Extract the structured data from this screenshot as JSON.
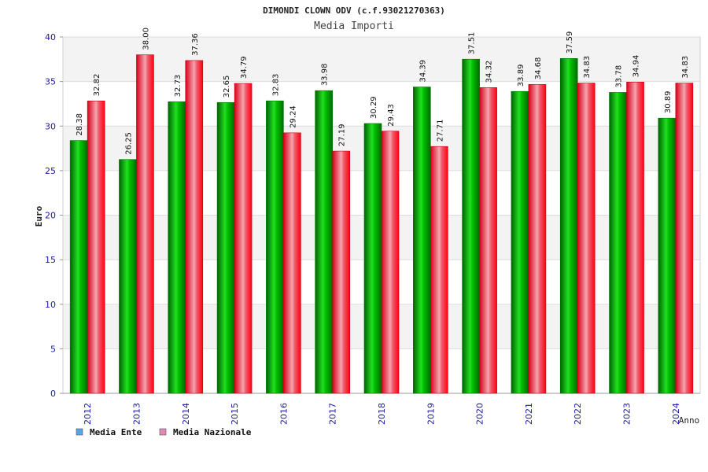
{
  "chart_data": {
    "type": "bar",
    "title": "DIMONDI CLOWN ODV (c.f.93021270363)",
    "subtitle": "Media Importi",
    "xlabel": "Anno",
    "ylabel": "Euro",
    "ylim": [
      0,
      40
    ],
    "yticks": [
      0,
      5,
      10,
      15,
      20,
      25,
      30,
      35,
      40
    ],
    "grid": true,
    "legend_position": "bottom-left",
    "categories": [
      "2012",
      "2013",
      "2014",
      "2015",
      "2016",
      "2017",
      "2018",
      "2019",
      "2020",
      "2021",
      "2022",
      "2023",
      "2024"
    ],
    "series": [
      {
        "name": "Media Ente",
        "color": "#00c000",
        "legend_color": "#5ba3e6",
        "values": [
          28.38,
          26.25,
          32.73,
          32.65,
          32.83,
          33.98,
          30.29,
          34.39,
          37.51,
          33.89,
          37.59,
          33.78,
          30.89
        ],
        "labels": [
          "28.38",
          "26.25",
          "32.73",
          "32.65",
          "32.83",
          "33.98",
          "30.29",
          "34.39",
          "37.51",
          "33.89",
          "37.59",
          "33.78",
          "30.89"
        ]
      },
      {
        "name": "Media Nazionale",
        "color": "#ee1c25",
        "legend_color": "#e389b9",
        "values": [
          32.82,
          38.0,
          37.36,
          34.79,
          29.24,
          27.19,
          29.43,
          27.71,
          34.32,
          34.68,
          34.83,
          34.94,
          34.83
        ],
        "labels": [
          "32.82",
          "38.00",
          "37.36",
          "34.79",
          "29.24",
          "27.19",
          "29.43",
          "27.71",
          "34.32",
          "34.68",
          "34.83",
          "34.94",
          "34.83"
        ]
      }
    ]
  }
}
